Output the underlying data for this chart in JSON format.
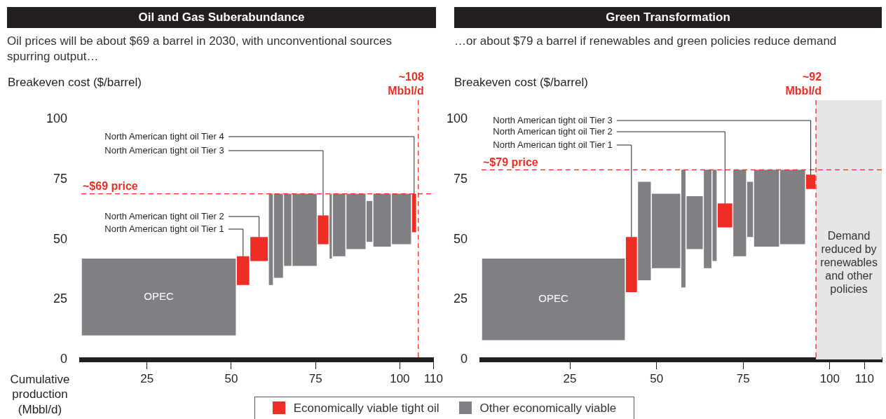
{
  "chart_data": [
    {
      "type": "bar",
      "title": "Oil and Gas Suberabundance",
      "subtitle": "Oil prices will be about $69 a barrel in 2030, with unconventional sources spurring output…",
      "ylabel": "Breakeven cost ($/barrel)",
      "xlabel": "Cumulative production (Mbbl/d)",
      "legend": "bottom",
      "x": [
        28.5,
        53.5,
        58.25,
        61.75,
        64,
        66.75,
        71.75,
        77.25,
        79.5,
        82,
        87,
        91,
        94.75,
        100.5,
        104.25
      ],
      "xlim": [
        5.5,
        110
      ],
      "xticks": [
        25,
        50,
        75,
        100,
        110
      ],
      "ylim": [
        0,
        108
      ],
      "yticks": [
        0,
        25,
        50,
        75,
        100
      ],
      "series": [
        {
          "name": "Economically viable tight oil",
          "color": "#ee2e24",
          "values": [
            null,
            12,
            10,
            null,
            null,
            null,
            null,
            12,
            null,
            null,
            null,
            null,
            null,
            null,
            16
          ],
          "base": [
            null,
            31,
            41,
            null,
            null,
            null,
            null,
            48,
            null,
            null,
            null,
            null,
            null,
            null,
            53
          ]
        },
        {
          "name": "Other economically viable",
          "color": "#808084",
          "values": [
            32,
            null,
            null,
            38,
            35,
            30,
            30,
            null,
            27,
            26,
            23,
            17,
            22,
            21,
            null
          ],
          "base": [
            10,
            null,
            null,
            31,
            34,
            39,
            39,
            null,
            42,
            43,
            46,
            49,
            47,
            48,
            null
          ]
        }
      ],
      "ref_lines": [
        {
          "axis": "y",
          "value": 69,
          "label": "~$69 price",
          "color": "#ee2e24",
          "line_style": "dashed"
        },
        {
          "axis": "x",
          "value": 105.5,
          "label": "~108 Mbbl/d",
          "color": "#ee2e24",
          "line_style": "dashed"
        }
      ],
      "annotations": [
        "OPEC",
        {
          "text": "North American tight oil Tier 4",
          "x": 104.25,
          "y": 69
        },
        {
          "text": "North American tight oil Tier 3",
          "x": 77.25,
          "y": 60
        },
        {
          "text": "North American tight oil Tier 2",
          "x": 58.25,
          "y": 51
        },
        {
          "text": "North American tight oil Tier 1",
          "x": 53.5,
          "y": 43
        }
      ]
    },
    {
      "type": "bar",
      "title": "Green Transformation",
      "subtitle": "…or about $79 a barrel if renewables and green policies reduce demand",
      "ylabel": "Breakeven cost ($/barrel)",
      "x": [
        20.25,
        42.75,
        46.5,
        52.75,
        57.75,
        61,
        64.75,
        66.75,
        69.75,
        74,
        77,
        81.75,
        89.25,
        94.5
      ],
      "xlim": [
        -0.5,
        115
      ],
      "xticks": [
        25,
        50,
        75,
        100,
        110
      ],
      "ylim": [
        0,
        108
      ],
      "yticks": [
        0,
        25,
        50,
        75,
        100
      ],
      "series": [
        {
          "color": "#ee2e24",
          "values": [
            null,
            23,
            null,
            null,
            null,
            null,
            null,
            null,
            10,
            null,
            null,
            null,
            null,
            6
          ],
          "base": [
            null,
            28,
            null,
            null,
            null,
            null,
            null,
            null,
            55,
            null,
            null,
            null,
            null,
            71
          ]
        },
        {
          "color": "#808084",
          "values": [
            34,
            null,
            41,
            31,
            49,
            22,
            41,
            38,
            null,
            36,
            23,
            32,
            31,
            null
          ],
          "base": [
            8,
            null,
            33,
            38,
            30,
            46,
            38,
            41,
            null,
            43,
            51,
            47,
            48,
            null
          ]
        }
      ],
      "ref_lines": [
        {
          "axis": "y",
          "value": 79,
          "label": "~$79 price",
          "color": "#ee2e24",
          "line_style": "dashed"
        },
        {
          "axis": "x",
          "value": 96,
          "label": "~92 Mbbl/d",
          "color": "#ee2e24",
          "line_style": "dashed"
        }
      ],
      "bands": [
        {
          "axis": "x",
          "from": 96,
          "to": 115,
          "label": "Demand reduced by renewables and other policies",
          "color": "#e6e6e8"
        }
      ],
      "annotations": [
        "OPEC",
        {
          "text": "North American tight oil Tier 3",
          "x": 94.5,
          "y": 77
        },
        {
          "text": "North American tight oil Tier 2",
          "x": 69.75,
          "y": 65
        },
        {
          "text": "North American tight oil Tier 1",
          "x": 42.75,
          "y": 51
        }
      ]
    }
  ]
}
